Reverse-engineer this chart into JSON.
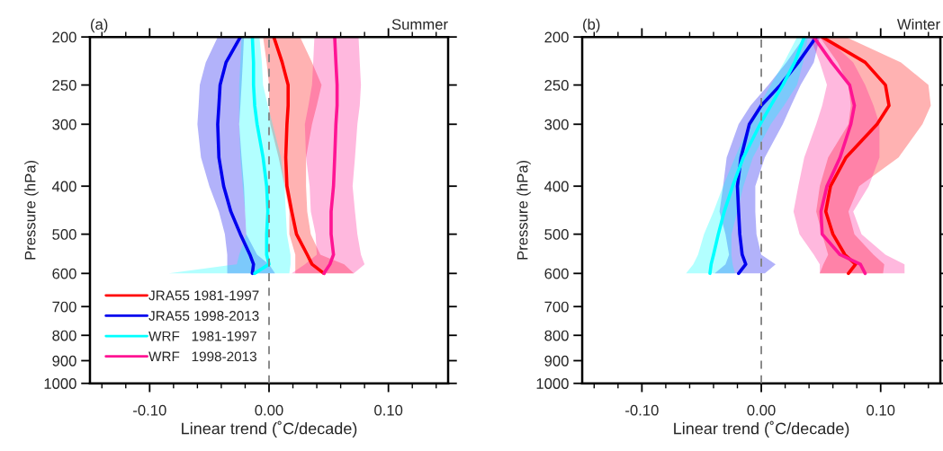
{
  "chart_data": [
    {
      "type": "line",
      "orientation": "horizontal",
      "title": "(a)",
      "subtitle": "Summer",
      "xlabel": "Linear trend (˚C/decade)",
      "ylabel": "Pressure (hPa)",
      "x": [
        200,
        225,
        250,
        275,
        300,
        350,
        400,
        450,
        500,
        550,
        575,
        600
      ],
      "series": [
        {
          "name": "JRA55 1981-1997",
          "color": "#ff0000",
          "values": [
            0.004,
            0.011,
            0.016,
            0.016,
            0.015,
            0.014,
            0.015,
            0.019,
            0.023,
            0.032,
            0.036,
            0.046
          ],
          "lower": [
            -0.005,
            -0.002,
            0.0,
            0.0,
            0.001,
            0.008,
            0.013,
            0.017,
            0.017,
            0.022,
            0.022,
            0.022
          ],
          "upper": [
            0.026,
            0.036,
            0.044,
            0.04,
            0.036,
            0.031,
            0.031,
            0.032,
            0.035,
            0.043,
            0.063,
            0.071
          ]
        },
        {
          "name": "JRA55 1998-2013",
          "color": "#0000ee",
          "values": [
            -0.024,
            -0.036,
            -0.041,
            -0.042,
            -0.043,
            -0.042,
            -0.038,
            -0.032,
            -0.024,
            -0.016,
            -0.013,
            -0.014
          ],
          "lower": [
            -0.043,
            -0.053,
            -0.058,
            -0.059,
            -0.06,
            -0.057,
            -0.05,
            -0.042,
            -0.037,
            -0.035,
            -0.035,
            -0.035
          ],
          "upper": [
            -0.021,
            -0.022,
            -0.023,
            -0.024,
            -0.025,
            -0.023,
            -0.021,
            -0.02,
            -0.019,
            -0.01,
            0.0,
            0.005
          ]
        },
        {
          "name": "WRF   1981-1997",
          "color": "#00ffff",
          "values": [
            -0.014,
            -0.013,
            -0.013,
            -0.012,
            -0.01,
            -0.005,
            -0.002,
            -0.001,
            -0.002,
            -0.002,
            0.0,
            -0.012
          ],
          "lower": [
            -0.023,
            -0.024,
            -0.025,
            -0.025,
            -0.025,
            -0.024,
            -0.022,
            -0.02,
            -0.019,
            -0.025,
            -0.027,
            -0.084
          ],
          "upper": [
            -0.008,
            -0.006,
            -0.005,
            -0.001,
            0.003,
            0.01,
            0.013,
            0.014,
            0.015,
            0.018,
            0.018,
            0.017
          ]
        },
        {
          "name": "WRF   1998-2013",
          "color": "#ff1493",
          "values": [
            0.055,
            0.056,
            0.057,
            0.057,
            0.056,
            0.055,
            0.054,
            0.052,
            0.052,
            0.054,
            0.051,
            0.046
          ],
          "lower": [
            0.038,
            0.037,
            0.036,
            0.033,
            0.03,
            0.031,
            0.034,
            0.035,
            0.039,
            0.04,
            0.03,
            0.019
          ],
          "upper": [
            0.075,
            0.076,
            0.077,
            0.076,
            0.074,
            0.072,
            0.07,
            0.072,
            0.074,
            0.077,
            0.08,
            0.071
          ]
        }
      ],
      "xlim": [
        -0.15,
        0.15
      ],
      "xticks": [
        {
          "value": -0.14,
          "label": null
        },
        {
          "value": -0.12,
          "label": null
        },
        {
          "value": -0.1,
          "label": "-0.10"
        },
        {
          "value": -0.08,
          "label": null
        },
        {
          "value": -0.06,
          "label": null
        },
        {
          "value": -0.04,
          "label": null
        },
        {
          "value": -0.02,
          "label": null
        },
        {
          "value": 0,
          "label": "0.00"
        },
        {
          "value": 0.02,
          "label": null
        },
        {
          "value": 0.04,
          "label": null
        },
        {
          "value": 0.06,
          "label": null
        },
        {
          "value": 0.08,
          "label": null
        },
        {
          "value": 0.1,
          "label": "0.10"
        },
        {
          "value": 0.12,
          "label": null
        },
        {
          "value": 0.14,
          "label": null
        }
      ],
      "log": "y",
      "ylim": [
        1000,
        200
      ],
      "yticks": [
        200,
        250,
        300,
        400,
        500,
        600,
        700,
        800,
        900,
        1000
      ],
      "ref_lines": [
        {
          "axis": "x",
          "value": 0,
          "color": "#808080",
          "line_style": "dashed"
        }
      ],
      "legend": "bottom left",
      "grid": false
    },
    {
      "type": "line",
      "orientation": "horizontal",
      "title": "(b)",
      "subtitle": "Winter",
      "xlabel": "Linear trend (˚C/decade)",
      "ylabel": "Pressure (hPa)",
      "x": [
        200,
        225,
        250,
        275,
        300,
        350,
        400,
        450,
        500,
        550,
        575,
        600
      ],
      "series": [
        {
          "color": "#ff0000",
          "values": [
            0.051,
            0.087,
            0.104,
            0.107,
            0.097,
            0.071,
            0.058,
            0.054,
            0.06,
            0.07,
            0.079,
            0.073
          ],
          "lower": [
            0.049,
            0.064,
            0.073,
            0.075,
            0.073,
            0.056,
            0.049,
            0.046,
            0.051,
            0.056,
            0.052,
            0.049
          ],
          "upper": [
            0.071,
            0.117,
            0.14,
            0.142,
            0.135,
            0.115,
            0.082,
            0.073,
            0.078,
            0.094,
            0.103,
            0.102
          ]
        },
        {
          "color": "#0000ee",
          "values": [
            0.046,
            0.031,
            0.016,
            0.0,
            -0.01,
            -0.017,
            -0.02,
            -0.019,
            -0.018,
            -0.016,
            -0.013,
            -0.019
          ],
          "lower": [
            0.036,
            0.021,
            0.006,
            -0.009,
            -0.019,
            -0.029,
            -0.032,
            -0.035,
            -0.03,
            -0.027,
            -0.03,
            -0.039
          ],
          "upper": [
            0.049,
            0.044,
            0.033,
            0.025,
            0.018,
            0.003,
            -0.005,
            -0.005,
            -0.004,
            0.0,
            0.012,
            0.003
          ]
        },
        {
          "color": "#00ffff",
          "values": [
            0.036,
            0.028,
            0.018,
            0.008,
            -0.001,
            -0.015,
            -0.024,
            -0.031,
            -0.036,
            -0.04,
            -0.042,
            -0.043
          ],
          "lower": [
            0.03,
            0.019,
            0.008,
            -0.002,
            -0.01,
            -0.022,
            -0.032,
            -0.04,
            -0.048,
            -0.053,
            -0.057,
            -0.063
          ],
          "upper": [
            0.039,
            0.035,
            0.03,
            0.019,
            0.008,
            -0.007,
            -0.015,
            -0.02,
            -0.025,
            -0.025,
            -0.024,
            -0.022
          ]
        },
        {
          "color": "#ff1493",
          "values": [
            0.044,
            0.059,
            0.074,
            0.078,
            0.075,
            0.066,
            0.055,
            0.05,
            0.051,
            0.066,
            0.083,
            0.087
          ],
          "lower": [
            0.041,
            0.049,
            0.055,
            0.051,
            0.046,
            0.036,
            0.031,
            0.027,
            0.032,
            0.044,
            0.049,
            0.049
          ],
          "upper": [
            0.054,
            0.077,
            0.087,
            0.094,
            0.099,
            0.099,
            0.09,
            0.077,
            0.084,
            0.104,
            0.12,
            0.12
          ]
        }
      ],
      "xlim": [
        -0.15,
        0.15
      ],
      "xticks": [
        {
          "value": -0.14,
          "label": null
        },
        {
          "value": -0.12,
          "label": null
        },
        {
          "value": -0.1,
          "label": "-0.10"
        },
        {
          "value": -0.08,
          "label": null
        },
        {
          "value": -0.06,
          "label": null
        },
        {
          "value": -0.04,
          "label": null
        },
        {
          "value": -0.02,
          "label": null
        },
        {
          "value": 0,
          "label": "0.00"
        },
        {
          "value": 0.02,
          "label": null
        },
        {
          "value": 0.04,
          "label": null
        },
        {
          "value": 0.06,
          "label": null
        },
        {
          "value": 0.08,
          "label": null
        },
        {
          "value": 0.1,
          "label": "0.10"
        },
        {
          "value": 0.12,
          "label": null
        },
        {
          "value": 0.14,
          "label": null
        }
      ],
      "log": "y",
      "ylim": [
        1000,
        200
      ],
      "yticks": [
        200,
        250,
        300,
        400,
        500,
        600,
        700,
        800,
        900,
        1000
      ],
      "ref_lines": [
        {
          "axis": "x",
          "value": 0,
          "color": "#808080",
          "line_style": "dashed"
        }
      ],
      "legend": false,
      "grid": false
    }
  ]
}
